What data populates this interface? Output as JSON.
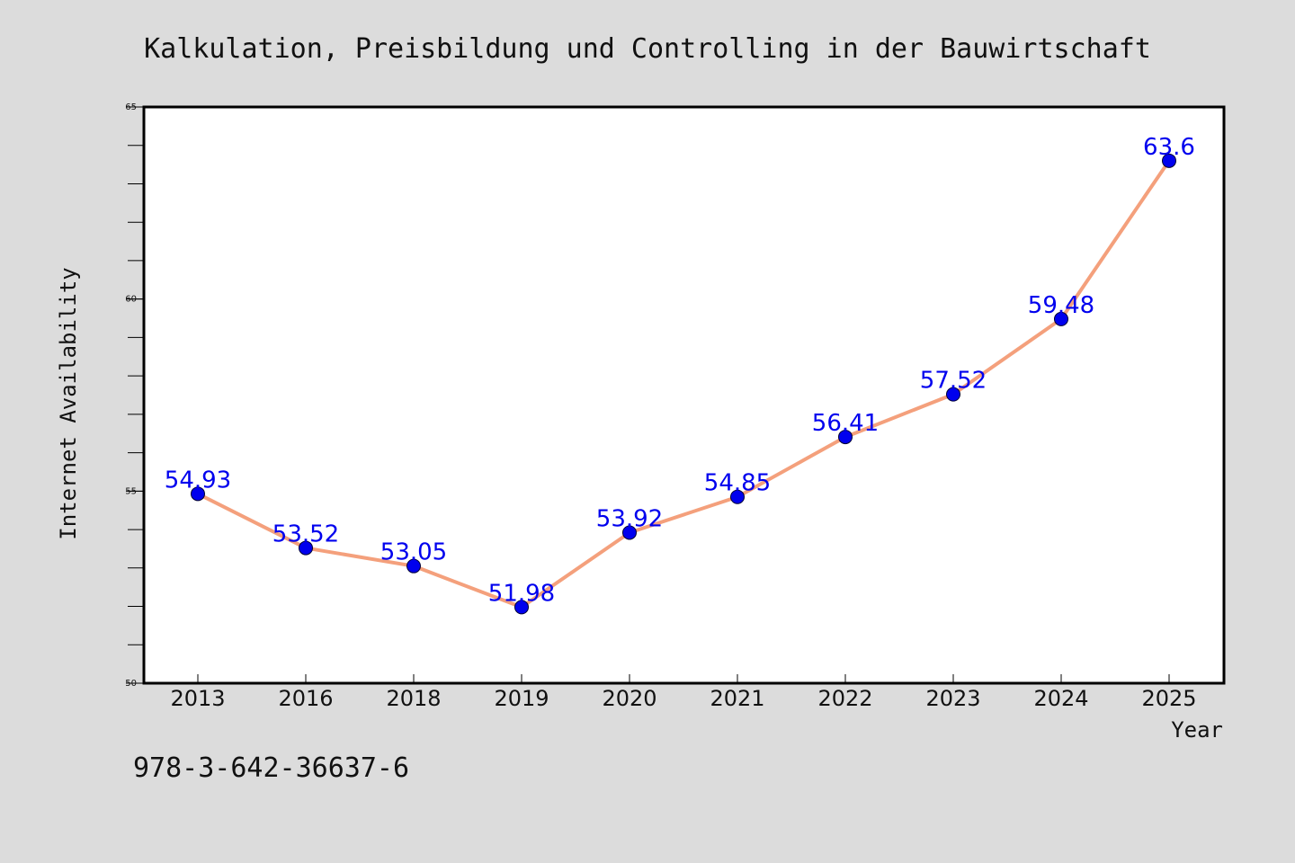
{
  "chart_data": {
    "type": "line",
    "title": "Kalkulation, Preisbildung und Controlling in der Bauwirtschaft",
    "xlabel": "Year",
    "ylabel": "Internet Availability",
    "categories": [
      "2013",
      "2016",
      "2018",
      "2019",
      "2020",
      "2021",
      "2022",
      "2023",
      "2024",
      "2025"
    ],
    "series": [
      {
        "values": [
          54.93,
          53.52,
          53.05,
          51.98,
          53.92,
          54.85,
          56.41,
          57.52,
          59.48,
          63.6
        ]
      }
    ],
    "data_labels": [
      "54.93",
      "53.52",
      "53.05",
      "51.98",
      "53.92",
      "54.85",
      "56.41",
      "57.52",
      "59.48",
      "63.6"
    ],
    "ylim": [
      50,
      65
    ],
    "yticks": [
      "50",
      "55",
      "60",
      "65"
    ],
    "grid": false,
    "legend": "none",
    "colors": {
      "line": "#f4a07c",
      "marker": "#0000ee",
      "data_label": "#0000ee",
      "background": "#dcdcdc",
      "plot_background": "#ffffff"
    }
  },
  "footer": {
    "isbn": "978-3-642-36637-6"
  }
}
